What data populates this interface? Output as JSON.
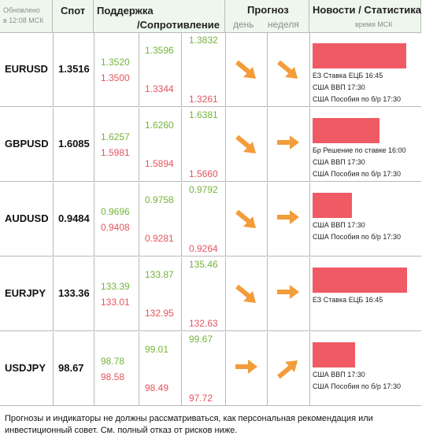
{
  "header": {
    "updated_line1": "Обновлено",
    "updated_line2": "в 12:08 МСК",
    "spot": "Спот",
    "support": "Поддержка",
    "resistance": "/Сопротивление",
    "forecast": "Прогноз",
    "day": "день",
    "week": "неделя",
    "news": "Новости / Статистика",
    "msk_time": "время МСК"
  },
  "rows": [
    {
      "pair": "EURUSD",
      "spot": "1.3516",
      "l1_top": "1.3520",
      "l1_bottom": "1.3500",
      "l2_top": "1.3596",
      "l2_bottom": "1.3344",
      "l3_top": "1.3832",
      "l3_bottom": "1.3261",
      "day": "down-right",
      "week": "down-right",
      "news_bar": 0.95,
      "news": [
        "ЕЗ Ставка ЕЦБ 16:45",
        "США ВВП 17:30",
        "США Пособия по б/р 17:30"
      ]
    },
    {
      "pair": "GBPUSD",
      "spot": "1.6085",
      "l1_top": "1.6257",
      "l1_bottom": "1.5981",
      "l2_top": "1.6260",
      "l2_bottom": "1.5894",
      "l3_top": "1.6381",
      "l3_bottom": "1.5660",
      "day": "down-right",
      "week": "right",
      "news_bar": 0.68,
      "news": [
        "Бр Решение по ставке 16:00",
        "США ВВП 17:30",
        "США Пособия по б/р 17:30"
      ]
    },
    {
      "pair": "AUDUSD",
      "spot": "0.9484",
      "l1_top": "0.9696",
      "l1_bottom": "0.9408",
      "l2_top": "0.9758",
      "l2_bottom": "0.9281",
      "l3_top": "0.9792",
      "l3_bottom": "0.9264",
      "day": "down-right",
      "week": "right",
      "news_bar": 0.4,
      "news": [
        "США ВВП 17:30",
        "США Пособия по б/р 17:30"
      ]
    },
    {
      "pair": "EURJPY",
      "spot": "133.36",
      "l1_top": "133.39",
      "l1_bottom": "133.01",
      "l2_top": "133.87",
      "l2_bottom": "132.95",
      "l3_top": "135.46",
      "l3_bottom": "132.63",
      "day": "down-right",
      "week": "right",
      "news_bar": 0.96,
      "news": [
        "ЕЗ Ставка ЕЦБ 16:45"
      ]
    },
    {
      "pair": "USDJPY",
      "spot": "98.67",
      "l1_top": "98.78",
      "l1_bottom": "98.58",
      "l2_top": "99.01",
      "l2_bottom": "98.49",
      "l3_top": "99.67",
      "l3_bottom": "97.72",
      "day": "right",
      "week": "up-right",
      "news_bar": 0.43,
      "news": [
        "США ВВП 17:30",
        "США Пособия по б/р 17:30"
      ]
    }
  ],
  "colors": {
    "green": "#75b43a",
    "red": "#e4545e",
    "arrow": "#f39c3a",
    "news_bar": "#f05a64"
  },
  "disclaimer": "Прогнозы и индикаторы не должны рассматриваться, как персональная рекомендация или инвестиционный совет. См. полный отказ от рисков ниже."
}
